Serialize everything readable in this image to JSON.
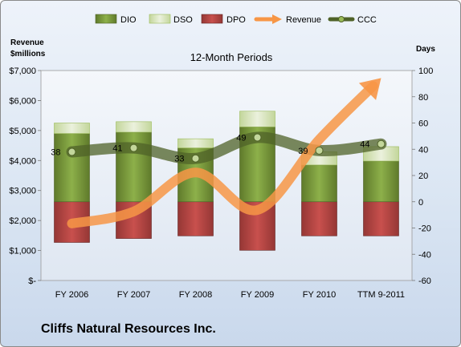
{
  "company": "Cliffs Natural Resources Inc.",
  "chart_data": {
    "type": "bar",
    "title": "12-Month Periods",
    "y_left_label": [
      "Revenue",
      "$millions"
    ],
    "y_right_label": "Days",
    "categories": [
      "FY 2006",
      "FY 2007",
      "FY 2008",
      "FY 2009",
      "FY 2010",
      "TTM 9-2011"
    ],
    "left_ylim": [
      0,
      7000
    ],
    "left_ticks": [
      "$-",
      "$1,000",
      "$2,000",
      "$3,000",
      "$4,000",
      "$5,000",
      "$6,000",
      "$7,000"
    ],
    "right_ylim": [
      -60,
      100
    ],
    "right_ticks": [
      "-60",
      "-40",
      "-20",
      "0",
      "20",
      "40",
      "60",
      "80",
      "100"
    ],
    "series": [
      {
        "name": "DIO",
        "values": [
          52,
          53,
          41,
          57,
          28,
          31
        ],
        "color": "#77933c"
      },
      {
        "name": "DSO",
        "values": [
          8,
          8,
          7,
          12,
          10,
          11
        ],
        "color": "#d7e4bd"
      },
      {
        "name": "DPO",
        "values": [
          -31,
          -28,
          -26,
          -37,
          -26,
          -26
        ],
        "color": "#c0504d"
      },
      {
        "name": "Revenue",
        "values": [
          1900,
          2300,
          3600,
          2350,
          4700,
          6750
        ],
        "color": "#f79646"
      },
      {
        "name": "CCC",
        "values": [
          38,
          41,
          33,
          49,
          39,
          44
        ],
        "color": "#4f6228"
      }
    ],
    "ccc_labels": [
      "38",
      "41",
      "33",
      "49",
      "39",
      "44"
    ],
    "legend_position": "top"
  }
}
